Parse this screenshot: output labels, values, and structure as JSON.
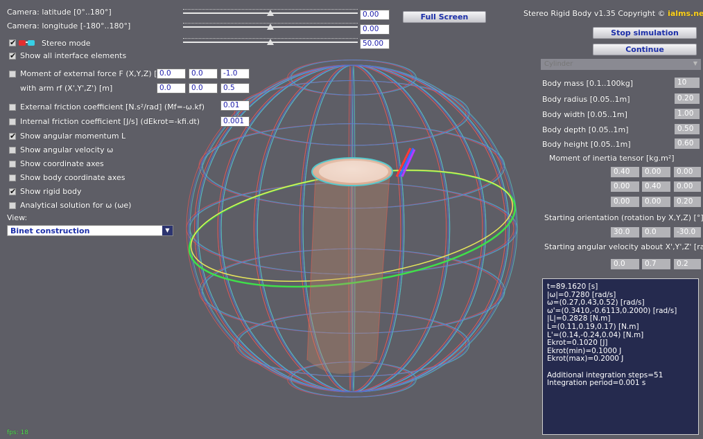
{
  "camera": {
    "latitude_label": "Camera: latitude [0°..180°]",
    "latitude_value": "0.00",
    "latitude_level": 0.5,
    "longitude_label": "Camera: longitude [-180°..180°]",
    "longitude_value": "0.00",
    "longitude_level": 0.5,
    "stereo_label": "Stereo mode",
    "stereo_value": "50.00",
    "stereo_level": 0.5,
    "fullscreen_label": "Full Screen"
  },
  "options": {
    "show_all_label": "Show all interface elements",
    "moment_label": "Moment of external force F (X,Y,Z) [N]",
    "moment_values": [
      "0.0",
      "0.0",
      "-1.0"
    ],
    "arm_label": "with arm rf (X',Y',Z') [m]",
    "arm_values": [
      "0.0",
      "0.0",
      "0.5"
    ],
    "ext_friction_label": "External friction coefficient [N.s²/rad] (Mf=-ω.kf)",
    "ext_friction_value": "0.01",
    "int_friction_label": "Internal friction coefficient [J/s] (dEkrot=-kfi.dt)",
    "int_friction_value": "0.001",
    "show_L_label": "Show angular momentum L",
    "show_omega_label": "Show angular velocity ω",
    "show_axes_label": "Show coordinate axes",
    "show_body_axes_label": "Show body coordinate axes",
    "show_rigid_label": "Show rigid body",
    "analytical_label": "Analytical solution for ω (ωe)",
    "view_label": "View:",
    "view_value": "Binet construction"
  },
  "header": {
    "title": "Stereo Rigid Body v1.35 Copyright ©",
    "brand": "ialms.net",
    "brand_color": "#ffd21a"
  },
  "controls": {
    "stop_label": "Stop simulation",
    "continue_label": "Continue",
    "preset_value": "Cylinder"
  },
  "body": {
    "mass_label": "Body mass [0.1..100kg]",
    "mass_value": "10",
    "radius_label": "Body radius [0.05..1m]",
    "radius_value": "0.20",
    "width_label": "Body width [0.05..1m]",
    "width_value": "1.00",
    "depth_label": "Body depth [0.05..1m]",
    "depth_value": "0.50",
    "height_label": "Body height [0.05..1m]",
    "height_value": "0.60",
    "inertia_label": "Moment of inertia tensor [kg.m²]",
    "inertia_rows": [
      [
        "0.40",
        "0.00",
        "0.00"
      ],
      [
        "0.00",
        "0.40",
        "0.00"
      ],
      [
        "0.00",
        "0.00",
        "0.20"
      ]
    ],
    "orientation_label": "Starting orientation (rotation by X,Y,Z) [°]",
    "orientation_values": [
      "30.0",
      "0.0",
      "-30.0"
    ],
    "ang_vel_label": "Starting angular velocity about X',Y',Z' [rad/s]",
    "ang_vel_values": [
      "0.0",
      "0.7",
      "0.2"
    ]
  },
  "info": {
    "lines": [
      "t=89.1620 [s]",
      "|ω|=0.7280 [rad/s]",
      "ω=(0.27,0.43,0.52) [rad/s]",
      "ω'=(0.3410,-0.6113,0.2000) [rad/s]",
      "|L|=0.2828 [N.m]",
      "L=(0.11,0.19,0.17) [N.m]",
      "L'=(0.14,-0.24,0.04) [N.m]",
      "Ekrot=0.1020 [J]",
      "Ekrot(min)=0.1000 J",
      "Ekrot(max)=0.2000 J",
      "",
      "Additional integration steps=51",
      "Integration period=0.001 s"
    ]
  },
  "fps": "fps: 18",
  "colors": {
    "background": "#5e5e66",
    "info_panel": "#252a4e",
    "equator_green": "#3fe04a",
    "equator_yellow": "#e8e85a",
    "wire_red": "#e05858",
    "wire_cyan": "#56c8cc",
    "wire_blue": "#5b6ecc"
  }
}
